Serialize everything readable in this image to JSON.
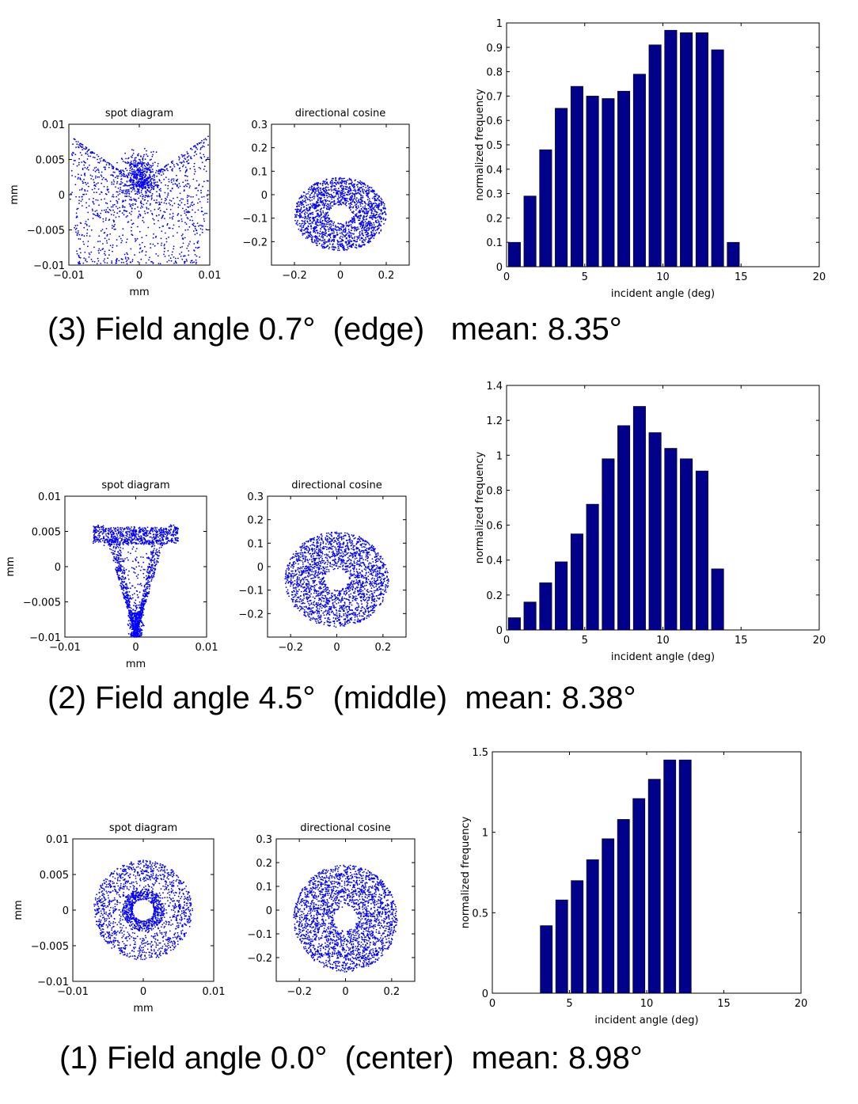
{
  "captions": [
    "(3) Field angle 0.7°  (edge)   mean: 8.35°",
    "(2) Field angle 4.5°  (middle)  mean: 8.38°",
    "(1) Field angle 0.0°  (center)  mean: 8.98°"
  ],
  "colors": {
    "points": "#0000ff",
    "bars": "#00008b",
    "axes": "#000000"
  },
  "chart_data": [
    {
      "type": "scatter",
      "panel": "edge",
      "title": "spot diagram",
      "xlabel": "mm",
      "ylabel": "mm",
      "xlim": [
        -0.01,
        0.01
      ],
      "ylim": [
        -0.01,
        0.01
      ],
      "xticks": [
        "−0.01",
        "0",
        "0.01"
      ],
      "yticks": [
        "0.01",
        "0.005",
        "0",
        "−0.005",
        "−0.01"
      ]
    },
    {
      "type": "scatter",
      "panel": "edge",
      "title": "directional cosine",
      "xlabel": "",
      "ylabel": "",
      "xlim": [
        -0.3,
        0.3
      ],
      "ylim": [
        -0.3,
        0.3
      ],
      "xticks": [
        "−0.2",
        "0",
        "0.2"
      ],
      "yticks": [
        "0.3",
        "0.2",
        "0.1",
        "0",
        "−0.1",
        "−0.2"
      ]
    },
    {
      "type": "bar",
      "panel": "edge",
      "title": "",
      "xlabel": "incident angle (deg)",
      "ylabel": "normalized frequency",
      "xlim": [
        0,
        20
      ],
      "ylim": [
        0,
        1
      ],
      "xticks": [
        "0",
        "5",
        "10",
        "15",
        "20"
      ],
      "yticks": [
        "1",
        "0.9",
        "0.8",
        "0.7",
        "0.6",
        "0.5",
        "0.4",
        "0.3",
        "0.2",
        "0.1",
        "0"
      ],
      "x": [
        0.5,
        1.5,
        2.5,
        3.5,
        4.5,
        5.5,
        6.5,
        7.5,
        8.5,
        9.5,
        10.5,
        11.5,
        12.5,
        13.5,
        14.5
      ],
      "values": [
        0.1,
        0.29,
        0.48,
        0.65,
        0.74,
        0.7,
        0.69,
        0.72,
        0.79,
        0.91,
        0.97,
        0.96,
        0.96,
        0.89,
        0.1
      ]
    },
    {
      "type": "scatter",
      "panel": "middle",
      "title": "spot diagram",
      "xlabel": "mm",
      "ylabel": "mm",
      "xlim": [
        -0.01,
        0.01
      ],
      "ylim": [
        -0.01,
        0.01
      ],
      "xticks": [
        "−0.01",
        "0",
        "0.01"
      ],
      "yticks": [
        "0.01",
        "0.005",
        "0",
        "−0.005",
        "−0.01"
      ]
    },
    {
      "type": "scatter",
      "panel": "middle",
      "title": "directional cosine",
      "xlabel": "",
      "ylabel": "",
      "xlim": [
        -0.3,
        0.3
      ],
      "ylim": [
        -0.3,
        0.3
      ],
      "xticks": [
        "−0.2",
        "0",
        "0.2"
      ],
      "yticks": [
        "0.3",
        "0.2",
        "0.1",
        "0",
        "−0.1",
        "−0.2"
      ]
    },
    {
      "type": "bar",
      "panel": "middle",
      "title": "",
      "xlabel": "incident angle (deg)",
      "ylabel": "normalized frequency",
      "xlim": [
        0,
        20
      ],
      "ylim": [
        0,
        1.4
      ],
      "xticks": [
        "0",
        "5",
        "10",
        "15",
        "20"
      ],
      "yticks": [
        "1.4",
        "1.2",
        "1",
        "0.8",
        "0.6",
        "0.4",
        "0.2",
        "0"
      ],
      "x": [
        0.5,
        1.5,
        2.5,
        3.5,
        4.5,
        5.5,
        6.5,
        7.5,
        8.5,
        9.5,
        10.5,
        11.5,
        12.5,
        13.5
      ],
      "values": [
        0.07,
        0.16,
        0.27,
        0.39,
        0.55,
        0.72,
        0.98,
        1.17,
        1.28,
        1.13,
        1.04,
        0.98,
        0.91,
        0.35
      ]
    },
    {
      "type": "scatter",
      "panel": "center",
      "title": "spot diagram",
      "xlabel": "mm",
      "ylabel": "mm",
      "xlim": [
        -0.01,
        0.01
      ],
      "ylim": [
        -0.01,
        0.01
      ],
      "xticks": [
        "−0.01",
        "0",
        "0.01"
      ],
      "yticks": [
        "0.01",
        "0.005",
        "0",
        "−0.005",
        "−0.01"
      ]
    },
    {
      "type": "scatter",
      "panel": "center",
      "title": "directional cosine",
      "xlabel": "",
      "ylabel": "",
      "xlim": [
        -0.3,
        0.3
      ],
      "ylim": [
        -0.3,
        0.3
      ],
      "xticks": [
        "−0.2",
        "0",
        "0.2"
      ],
      "yticks": [
        "0.3",
        "0.2",
        "0.1",
        "0",
        "−0.1",
        "−0.2"
      ]
    },
    {
      "type": "bar",
      "panel": "center",
      "title": "",
      "xlabel": "incident angle (deg)",
      "ylabel": "normalized frequency",
      "xlim": [
        0,
        20
      ],
      "ylim": [
        0,
        1.5
      ],
      "xticks": [
        "0",
        "5",
        "10",
        "15",
        "20"
      ],
      "yticks": [
        "1.5",
        "1",
        "0.5",
        "0"
      ],
      "x": [
        3.5,
        4.5,
        5.5,
        6.5,
        7.5,
        8.5,
        9.5,
        10.5,
        11.5,
        12.5
      ],
      "values": [
        0.42,
        0.58,
        0.7,
        0.83,
        0.96,
        1.08,
        1.21,
        1.33,
        1.45,
        1.45
      ]
    }
  ]
}
